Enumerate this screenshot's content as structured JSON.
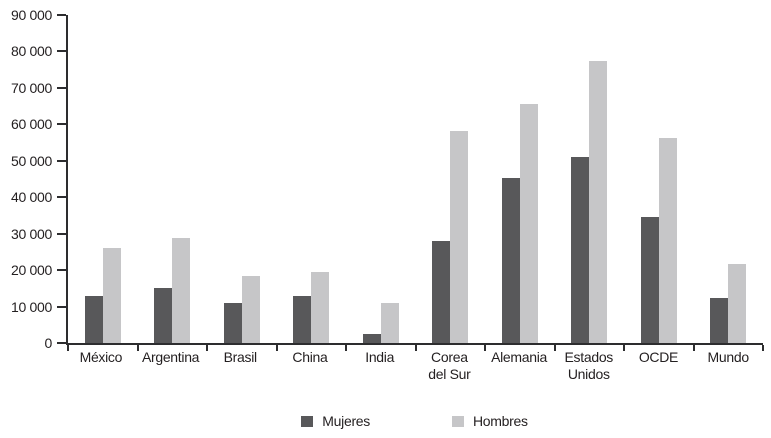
{
  "chart_data": {
    "type": "bar",
    "title": "",
    "xlabel": "",
    "ylabel": "",
    "categories": [
      "México",
      "Argentina",
      "Brasil",
      "China",
      "India",
      "Corea\ndel Sur",
      "Alemania",
      "Estados\nUnidos",
      "OCDE",
      "Mundo"
    ],
    "series": [
      {
        "name": "Mujeres",
        "color": "#58585a",
        "values": [
          12800,
          15200,
          11000,
          12900,
          2500,
          28000,
          45300,
          51000,
          34600,
          12400
        ]
      },
      {
        "name": "Hombres",
        "color": "#c6c6c8",
        "values": [
          26000,
          28700,
          18500,
          19500,
          11000,
          58300,
          65700,
          77300,
          56200,
          21800
        ]
      }
    ],
    "ylim": [
      0,
      90000
    ],
    "ytick_step": 10000,
    "ytick_labels": [
      "0",
      "10 000",
      "20 000",
      "30 000",
      "40 000",
      "50 000",
      "60 000",
      "70 000",
      "80 000",
      "90 000"
    ],
    "grid": false,
    "legend_position": "bottom",
    "axis_color": "#2d2d2f",
    "text_color": "#231f20",
    "background_color": "#ffffff"
  }
}
